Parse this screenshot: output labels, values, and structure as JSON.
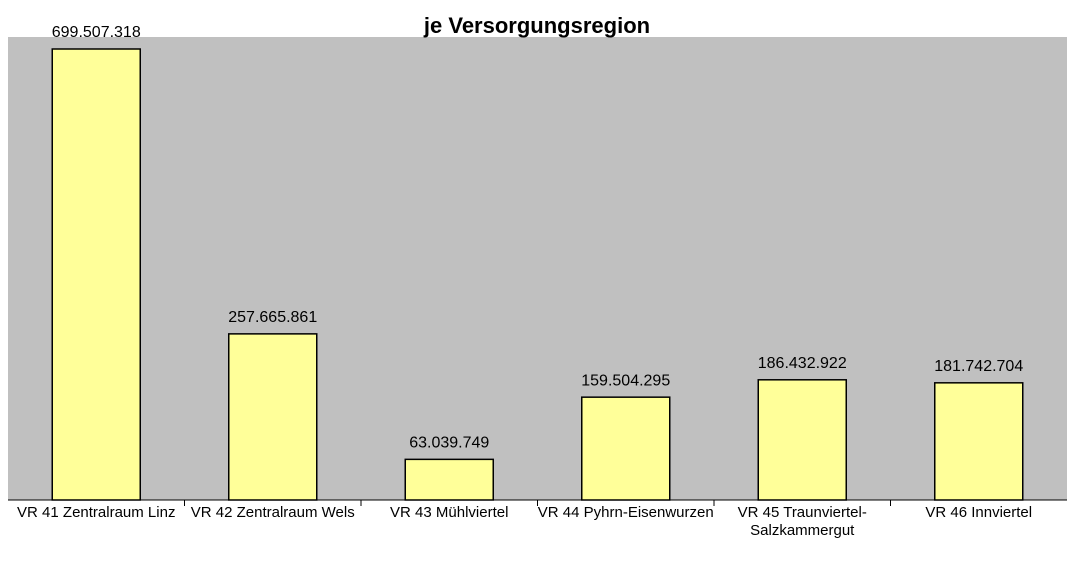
{
  "chart_data": {
    "type": "bar",
    "title": "je Versorgungsregion",
    "categories": [
      "VR 41 Zentralraum Linz",
      "VR 42 Zentralraum Wels",
      "VR 43 Mühlviertel",
      "VR 44 Pyhrn-Eisenwurzen",
      "VR 45 Traunviertel-Salzkammergut",
      "VR 46 Innviertel"
    ],
    "values": [
      699507318,
      257665861,
      63039749,
      159504295,
      186432922,
      181742704
    ],
    "value_labels": [
      "699.507.318",
      "257.665.861",
      "63.039.749",
      "159.504.295",
      "186.432.922",
      "181.742.704"
    ],
    "color": "#ffff99"
  }
}
